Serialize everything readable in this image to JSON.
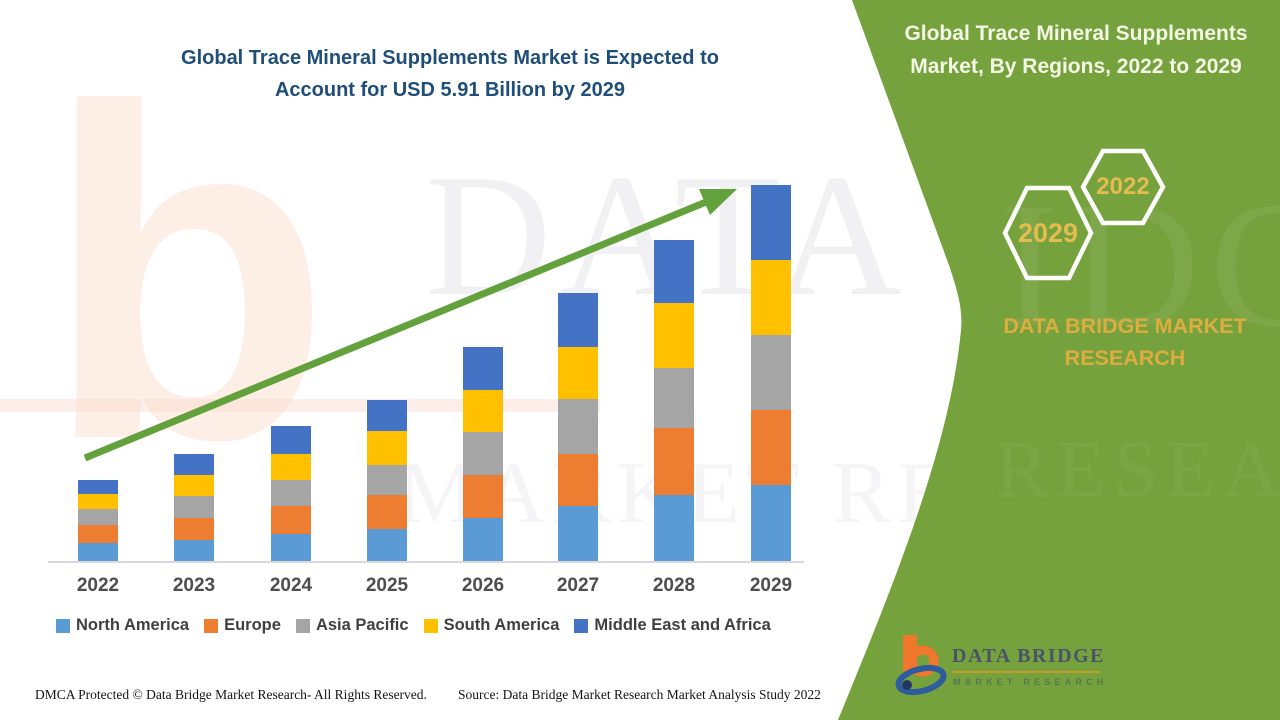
{
  "header": {
    "title_line1": "Global Trace Mineral Supplements Market is Expected to",
    "title_line2": "Account for USD 5.91 Billion by 2029"
  },
  "side_panel": {
    "title_line1": "Global Trace Mineral Supplements",
    "title_line2": "Market, By Regions, 2022 to 2029",
    "hexagon_labels": [
      "2029",
      "2022"
    ],
    "brand_line1": "DATA BRIDGE MARKET",
    "brand_line2": "RESEARCH",
    "logo_text": "DATA BRIDGE",
    "logo_subtext": "MARKET RESEARCH",
    "panel_color": "#76A23E",
    "accent_gold": "#E4BC50"
  },
  "footer": {
    "left": "DMCA Protected © Data Bridge Market Research- All Rights Reserved.",
    "right": "Source: Data Bridge Market Research Market Analysis Study 2022"
  },
  "watermarks": {
    "b_glyph": "b",
    "big_letters": "DATA BR",
    "mid_letters": "MARKET RESEA",
    "panel_letters_1": "IDGE",
    "panel_letters_2": "RESEARCH"
  },
  "chart_data": {
    "type": "bar",
    "stacked": true,
    "unit": "USD Billion",
    "title": "Global Trace Mineral Supplements Market is Expected to Account for USD 5.91 Billion by 2029",
    "categories": [
      "2022",
      "2023",
      "2024",
      "2025",
      "2026",
      "2027",
      "2028",
      "2029"
    ],
    "series": [
      {
        "name": "North America",
        "color": "#5B9BD5",
        "values": [
          0.28,
          0.33,
          0.43,
          0.5,
          0.67,
          0.87,
          1.04,
          1.19
        ]
      },
      {
        "name": "Europe",
        "color": "#ED7D31",
        "values": [
          0.28,
          0.35,
          0.43,
          0.54,
          0.68,
          0.82,
          1.05,
          1.19
        ]
      },
      {
        "name": "Asia Pacific",
        "color": "#A5A5A5",
        "values": [
          0.25,
          0.34,
          0.41,
          0.47,
          0.68,
          0.86,
          0.94,
          1.17
        ]
      },
      {
        "name": "South America",
        "color": "#FFC000",
        "values": [
          0.24,
          0.33,
          0.42,
          0.54,
          0.66,
          0.81,
          1.03,
          1.19
        ]
      },
      {
        "name": "Middle East and Africa",
        "color": "#4472C4",
        "values": [
          0.22,
          0.34,
          0.43,
          0.48,
          0.68,
          0.85,
          0.99,
          1.17
        ]
      }
    ],
    "totals_estimated": [
      1.27,
      1.69,
      2.12,
      2.53,
      3.37,
      4.21,
      5.05,
      5.91
    ],
    "highlight_value_2029": "5.91",
    "xlabel": "",
    "ylabel": "",
    "ylim": [
      0,
      6.2
    ],
    "y_axis_visible": false,
    "grid": false,
    "legend_position": "bottom",
    "baseline_color": "#D9D9D9",
    "trend_arrow": true,
    "trend_arrow_color": "#63A13D"
  }
}
